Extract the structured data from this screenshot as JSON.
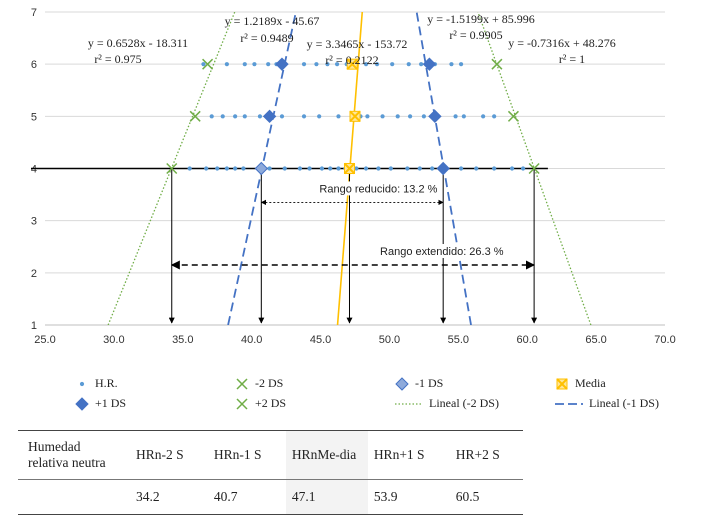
{
  "chart_data": {
    "type": "scatter",
    "xlim": [
      25,
      70
    ],
    "ylim": [
      1,
      7
    ],
    "x_ticks": [
      "25.0",
      "30.0",
      "35.0",
      "40.0",
      "45.0",
      "50.0",
      "55.0",
      "60.0",
      "65.0",
      "70.0"
    ],
    "y_ticks": [
      "1",
      "2",
      "3",
      "4",
      "5",
      "6",
      "7"
    ],
    "grid": "horizontal",
    "series": [
      {
        "name": "H.R.",
        "marker": "dot",
        "color": "#5b9bd5",
        "points": [
          [
            36.5,
            6
          ],
          [
            38.2,
            6
          ],
          [
            39.5,
            6
          ],
          [
            40.2,
            6
          ],
          [
            41.2,
            6
          ],
          [
            41.8,
            6
          ],
          [
            43.8,
            6
          ],
          [
            44.7,
            6
          ],
          [
            45.5,
            6
          ],
          [
            46.2,
            6
          ],
          [
            46.9,
            6
          ],
          [
            48.3,
            6
          ],
          [
            49.1,
            6
          ],
          [
            50.2,
            6
          ],
          [
            51.4,
            6
          ],
          [
            52.3,
            6
          ],
          [
            53.3,
            6
          ],
          [
            54.5,
            6
          ],
          [
            55.2,
            6
          ],
          [
            37.1,
            5
          ],
          [
            37.9,
            5
          ],
          [
            38.8,
            5
          ],
          [
            39.5,
            5
          ],
          [
            40.6,
            5
          ],
          [
            42.2,
            5
          ],
          [
            43.8,
            5
          ],
          [
            44.9,
            5
          ],
          [
            46.3,
            5
          ],
          [
            47.9,
            5
          ],
          [
            48.4,
            5
          ],
          [
            49.5,
            5
          ],
          [
            50.6,
            5
          ],
          [
            51.5,
            5
          ],
          [
            52.5,
            5
          ],
          [
            54.8,
            5
          ],
          [
            55.4,
            5
          ],
          [
            56.8,
            5
          ],
          [
            57.6,
            5
          ],
          [
            35.5,
            4
          ],
          [
            36.7,
            4
          ],
          [
            37.5,
            4
          ],
          [
            38.2,
            4
          ],
          [
            38.8,
            4
          ],
          [
            39.4,
            4
          ],
          [
            41.3,
            4
          ],
          [
            42.4,
            4
          ],
          [
            43.5,
            4
          ],
          [
            44.2,
            4
          ],
          [
            45.1,
            4
          ],
          [
            45.7,
            4
          ],
          [
            46.3,
            4
          ],
          [
            46.8,
            4
          ],
          [
            47.6,
            4
          ],
          [
            48.3,
            4
          ],
          [
            49.2,
            4
          ],
          [
            50.1,
            4
          ],
          [
            51.3,
            4
          ],
          [
            52.2,
            4
          ],
          [
            53.1,
            4
          ],
          [
            55.2,
            4
          ],
          [
            56.3,
            4
          ],
          [
            57.6,
            4
          ],
          [
            58.9,
            4
          ],
          [
            59.7,
            4
          ]
        ]
      },
      {
        "name": "-2 DS",
        "marker": "x",
        "color": "#70ad47",
        "points": [
          [
            34.2,
            4
          ],
          [
            35.9,
            5
          ],
          [
            36.8,
            6
          ]
        ]
      },
      {
        "name": "-1 DS",
        "marker": "diamond-light",
        "color": "#4472c4",
        "points": [
          [
            40.7,
            4
          ]
        ]
      },
      {
        "name": "Media",
        "marker": "xsquare",
        "color": "#ffc000",
        "points": [
          [
            47.1,
            4
          ],
          [
            47.5,
            5
          ],
          [
            47.3,
            6
          ]
        ]
      },
      {
        "name": "+1 DS",
        "marker": "diamond",
        "color": "#4472c4",
        "points": [
          [
            41.3,
            5
          ],
          [
            42.2,
            6
          ],
          [
            53.9,
            4
          ],
          [
            53.3,
            5
          ],
          [
            52.9,
            6
          ]
        ]
      },
      {
        "name": "+2 DS",
        "marker": "x",
        "color": "#70ad47",
        "points": [
          [
            60.5,
            4
          ],
          [
            59.0,
            5
          ],
          [
            57.8,
            6
          ]
        ]
      }
    ],
    "trendlines": [
      {
        "name": "Lineal (-2 DS)",
        "equation": "y = 0.6528x - 18.311",
        "r2": "r² = 0.975",
        "style": "dotted",
        "color": "#70ad47",
        "slope": 0.6528,
        "intercept": -18.311
      },
      {
        "name": "Lineal (-1 DS)",
        "equation": "y = 1.2189x - 45.67",
        "r2": "r² = 0.9489",
        "style": "dashed",
        "color": "#4472c4",
        "slope": 1.2189,
        "intercept": -45.67
      },
      {
        "equation": "y = 3.3465x - 153.72",
        "r2": "r² = 0.2122",
        "style": "solid",
        "color": "#ffc000",
        "slope": 3.3465,
        "intercept": -153.72
      },
      {
        "equation": "y = -1.5199x + 85.996",
        "r2": "r² = 0.9905",
        "style": "dashed",
        "color": "#4472c4",
        "slope": -1.5199,
        "intercept": 85.996
      },
      {
        "equation": "y = -0.7316x + 48.276",
        "r2": "r² = 1",
        "style": "dotted",
        "color": "#70ad47",
        "slope": -0.7316,
        "intercept": 48.276
      }
    ],
    "neutral_line_y": 4,
    "drop_lines_x": [
      34.2,
      40.7,
      47.1,
      53.9,
      60.5
    ],
    "ranges": [
      {
        "label": "Rango reducido: 13.2 %",
        "x_start": 40.7,
        "x_end": 53.9,
        "y": 3.35
      },
      {
        "label": "Rango extendido: 26.3 %",
        "x_start": 34.2,
        "x_end": 60.5,
        "y": 2.15
      }
    ]
  },
  "legend": [
    {
      "label": "H.R.",
      "marker": "dot",
      "color": "#5b9bd5"
    },
    {
      "label": "-2 DS",
      "marker": "x",
      "color": "#70ad47"
    },
    {
      "label": "-1 DS",
      "marker": "diamond-light",
      "color": "#4472c4"
    },
    {
      "label": "Media",
      "marker": "xsquare",
      "color": "#ffc000"
    },
    {
      "label": "+1 DS",
      "marker": "diamond",
      "color": "#4472c4"
    },
    {
      "label": "+2 DS",
      "marker": "x",
      "color": "#70ad47"
    },
    {
      "label": "Lineal (-2 DS)",
      "marker": "dotted-line",
      "color": "#70ad47"
    },
    {
      "label": "Lineal (-1 DS)",
      "marker": "dashed-line",
      "color": "#4472c4"
    }
  ],
  "table": {
    "row_label": "Humedad relativa neutra",
    "headers": [
      "HRn-2 S",
      "HRn-1 S",
      "HRnMe-dia",
      "HRn+1 S",
      "HR+2 S"
    ],
    "values": [
      "34.2",
      "40.7",
      "47.1",
      "53.9",
      "60.5"
    ]
  }
}
